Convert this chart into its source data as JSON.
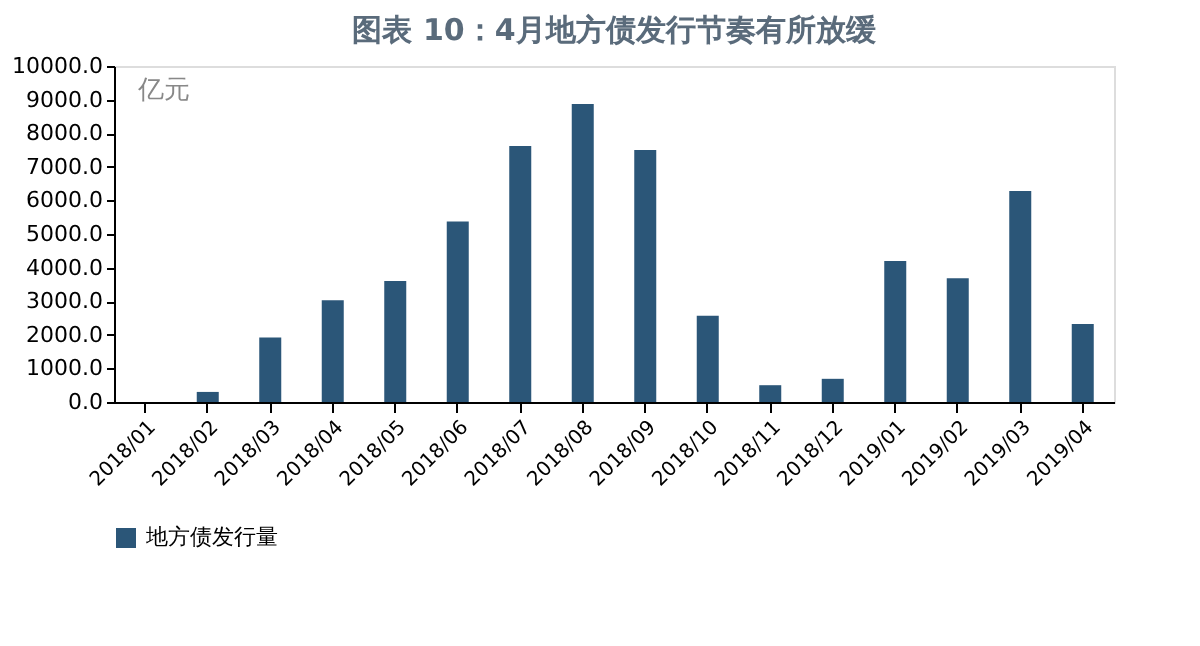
{
  "chart_data": {
    "type": "bar",
    "title": "图表 10：4月地方债发行节奏有所放缓",
    "categories": [
      "2018/01",
      "2018/02",
      "2018/03",
      "2018/04",
      "2018/05",
      "2018/06",
      "2018/07",
      "2018/08",
      "2018/09",
      "2018/10",
      "2018/11",
      "2018/12",
      "2019/01",
      "2019/02",
      "2019/03",
      "2019/04"
    ],
    "series": [
      {
        "name": "地方债发行量",
        "color": "#2b5678",
        "values": [
          0,
          300,
          1920,
          3030,
          3600,
          5370,
          7620,
          8870,
          7500,
          2570,
          500,
          690,
          4200,
          3680,
          6280,
          2320
        ]
      }
    ],
    "ylabel": "亿元",
    "ylim": [
      0,
      10000
    ],
    "yticks": [
      {
        "value": 0,
        "label": "0.0"
      },
      {
        "value": 1000,
        "label": "1000.0"
      },
      {
        "value": 2000,
        "label": "2000.0"
      },
      {
        "value": 3000,
        "label": "3000.0"
      },
      {
        "value": 4000,
        "label": "4000.0"
      },
      {
        "value": 5000,
        "label": "5000.0"
      },
      {
        "value": 6000,
        "label": "6000.0"
      },
      {
        "value": 7000,
        "label": "7000.0"
      },
      {
        "value": 8000,
        "label": "8000.0"
      },
      {
        "value": 9000,
        "label": "9000.0"
      },
      {
        "value": 10000,
        "label": "10000.0"
      }
    ],
    "grid": false,
    "legend": "bottom"
  }
}
